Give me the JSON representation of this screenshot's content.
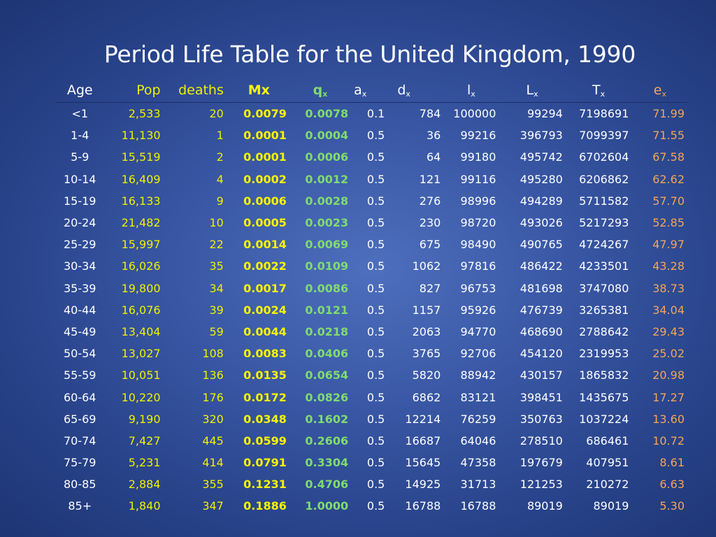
{
  "title": "Period Life Table for the United Kingdom, 1990",
  "headers": {
    "age": "Age",
    "pop": "Pop",
    "deaths": "deaths",
    "mx": "Mx",
    "qx": {
      "base": "q",
      "sub": "x"
    },
    "ax": {
      "base": "a",
      "sub": "x"
    },
    "dx": {
      "base": "d",
      "sub": "x"
    },
    "lx": {
      "base": "l",
      "sub": "x"
    },
    "Lx": {
      "base": "L",
      "sub": "x"
    },
    "Tx": {
      "base": "T",
      "sub": "x"
    },
    "ex": {
      "base": "e",
      "sub": "x"
    }
  },
  "rows": [
    [
      "<1",
      "2,533",
      "20",
      "0.0079",
      "0.0078",
      "0.1",
      "784",
      "100000",
      "99294",
      "7198691",
      "71.99"
    ],
    [
      "1-4",
      "11,130",
      "1",
      "0.0001",
      "0.0004",
      "0.5",
      "36",
      "99216",
      "396793",
      "7099397",
      "71.55"
    ],
    [
      "5-9",
      "15,519",
      "2",
      "0.0001",
      "0.0006",
      "0.5",
      "64",
      "99180",
      "495742",
      "6702604",
      "67.58"
    ],
    [
      "10-14",
      "16,409",
      "4",
      "0.0002",
      "0.0012",
      "0.5",
      "121",
      "99116",
      "495280",
      "6206862",
      "62.62"
    ],
    [
      "15-19",
      "16,133",
      "9",
      "0.0006",
      "0.0028",
      "0.5",
      "276",
      "98996",
      "494289",
      "5711582",
      "57.70"
    ],
    [
      "20-24",
      "21,482",
      "10",
      "0.0005",
      "0.0023",
      "0.5",
      "230",
      "98720",
      "493026",
      "5217293",
      "52.85"
    ],
    [
      "25-29",
      "15,997",
      "22",
      "0.0014",
      "0.0069",
      "0.5",
      "675",
      "98490",
      "490765",
      "4724267",
      "47.97"
    ],
    [
      "30-34",
      "16,026",
      "35",
      "0.0022",
      "0.0109",
      "0.5",
      "1062",
      "97816",
      "486422",
      "4233501",
      "43.28"
    ],
    [
      "35-39",
      "19,800",
      "34",
      "0.0017",
      "0.0086",
      "0.5",
      "827",
      "96753",
      "481698",
      "3747080",
      "38.73"
    ],
    [
      "40-44",
      "16,076",
      "39",
      "0.0024",
      "0.0121",
      "0.5",
      "1157",
      "95926",
      "476739",
      "3265381",
      "34.04"
    ],
    [
      "45-49",
      "13,404",
      "59",
      "0.0044",
      "0.0218",
      "0.5",
      "2063",
      "94770",
      "468690",
      "2788642",
      "29.43"
    ],
    [
      "50-54",
      "13,027",
      "108",
      "0.0083",
      "0.0406",
      "0.5",
      "3765",
      "92706",
      "454120",
      "2319953",
      "25.02"
    ],
    [
      "55-59",
      "10,051",
      "136",
      "0.0135",
      "0.0654",
      "0.5",
      "5820",
      "88942",
      "430157",
      "1865832",
      "20.98"
    ],
    [
      "60-64",
      "10,220",
      "176",
      "0.0172",
      "0.0826",
      "0.5",
      "6862",
      "83121",
      "398451",
      "1435675",
      "17.27"
    ],
    [
      "65-69",
      "9,190",
      "320",
      "0.0348",
      "0.1602",
      "0.5",
      "12214",
      "76259",
      "350763",
      "1037224",
      "13.60"
    ],
    [
      "70-74",
      "7,427",
      "445",
      "0.0599",
      "0.2606",
      "0.5",
      "16687",
      "64046",
      "278510",
      "686461",
      "10.72"
    ],
    [
      "75-79",
      "5,231",
      "414",
      "0.0791",
      "0.3304",
      "0.5",
      "15645",
      "47358",
      "197679",
      "407951",
      "8.61"
    ],
    [
      "80-85",
      "2,884",
      "355",
      "0.1231",
      "0.4706",
      "0.5",
      "14925",
      "31713",
      "121253",
      "210272",
      "6.63"
    ],
    [
      "85+",
      "1,840",
      "347",
      "0.1886",
      "1.0000",
      "0.5",
      "16788",
      "16788",
      "89019",
      "89019",
      "5.30"
    ]
  ],
  "colors": {
    "background": "#3a58a6",
    "title": "#ffffff",
    "pop_deaths": "#f0f000",
    "mx": "#f5f500",
    "qx": "#7fdc6e",
    "ex": "#f5a555",
    "default_text": "#ffffff"
  }
}
